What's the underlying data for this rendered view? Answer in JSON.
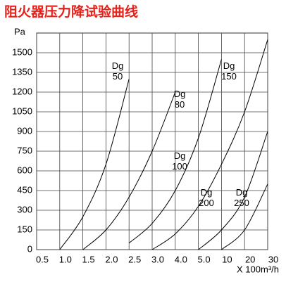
{
  "chart_data": {
    "type": "line",
    "title": "阻火器压力降试验曲线",
    "y_label": "Pa",
    "x_label": "X 100m³/h",
    "categories": [
      "0.5",
      "1.0",
      "1.5",
      "2.0",
      "2.5",
      "3.0",
      "4.0",
      "5.0",
      "10",
      "20",
      "30"
    ],
    "ylim": [
      0,
      1650
    ],
    "yticks": [
      0,
      150,
      300,
      450,
      600,
      750,
      900,
      1050,
      1200,
      1350,
      1500
    ],
    "grid": true,
    "series": [
      {
        "name": "Dg 50",
        "color": "#000000",
        "values": [
          null,
          0,
          250,
          650,
          1300,
          null,
          null,
          null,
          null,
          null,
          null
        ]
      },
      {
        "name": "Dg 80",
        "color": "#000000",
        "values": [
          null,
          null,
          0,
          150,
          400,
          750,
          1200,
          null,
          null,
          null,
          null
        ]
      },
      {
        "name": "Dg 100",
        "color": "#000000",
        "values": [
          null,
          null,
          null,
          null,
          50,
          200,
          450,
          850,
          1450,
          null,
          null
        ]
      },
      {
        "name": "Dg 150",
        "color": "#000000",
        "values": [
          null,
          null,
          null,
          null,
          null,
          0,
          120,
          330,
          650,
          1050,
          1600
        ]
      },
      {
        "name": "Dg 200",
        "color": "#000000",
        "values": [
          null,
          null,
          null,
          null,
          null,
          null,
          null,
          0,
          150,
          400,
          900
        ]
      },
      {
        "name": "Dg 250",
        "color": "#000000",
        "values": [
          null,
          null,
          null,
          null,
          null,
          null,
          null,
          null,
          0,
          150,
          500
        ]
      }
    ]
  }
}
